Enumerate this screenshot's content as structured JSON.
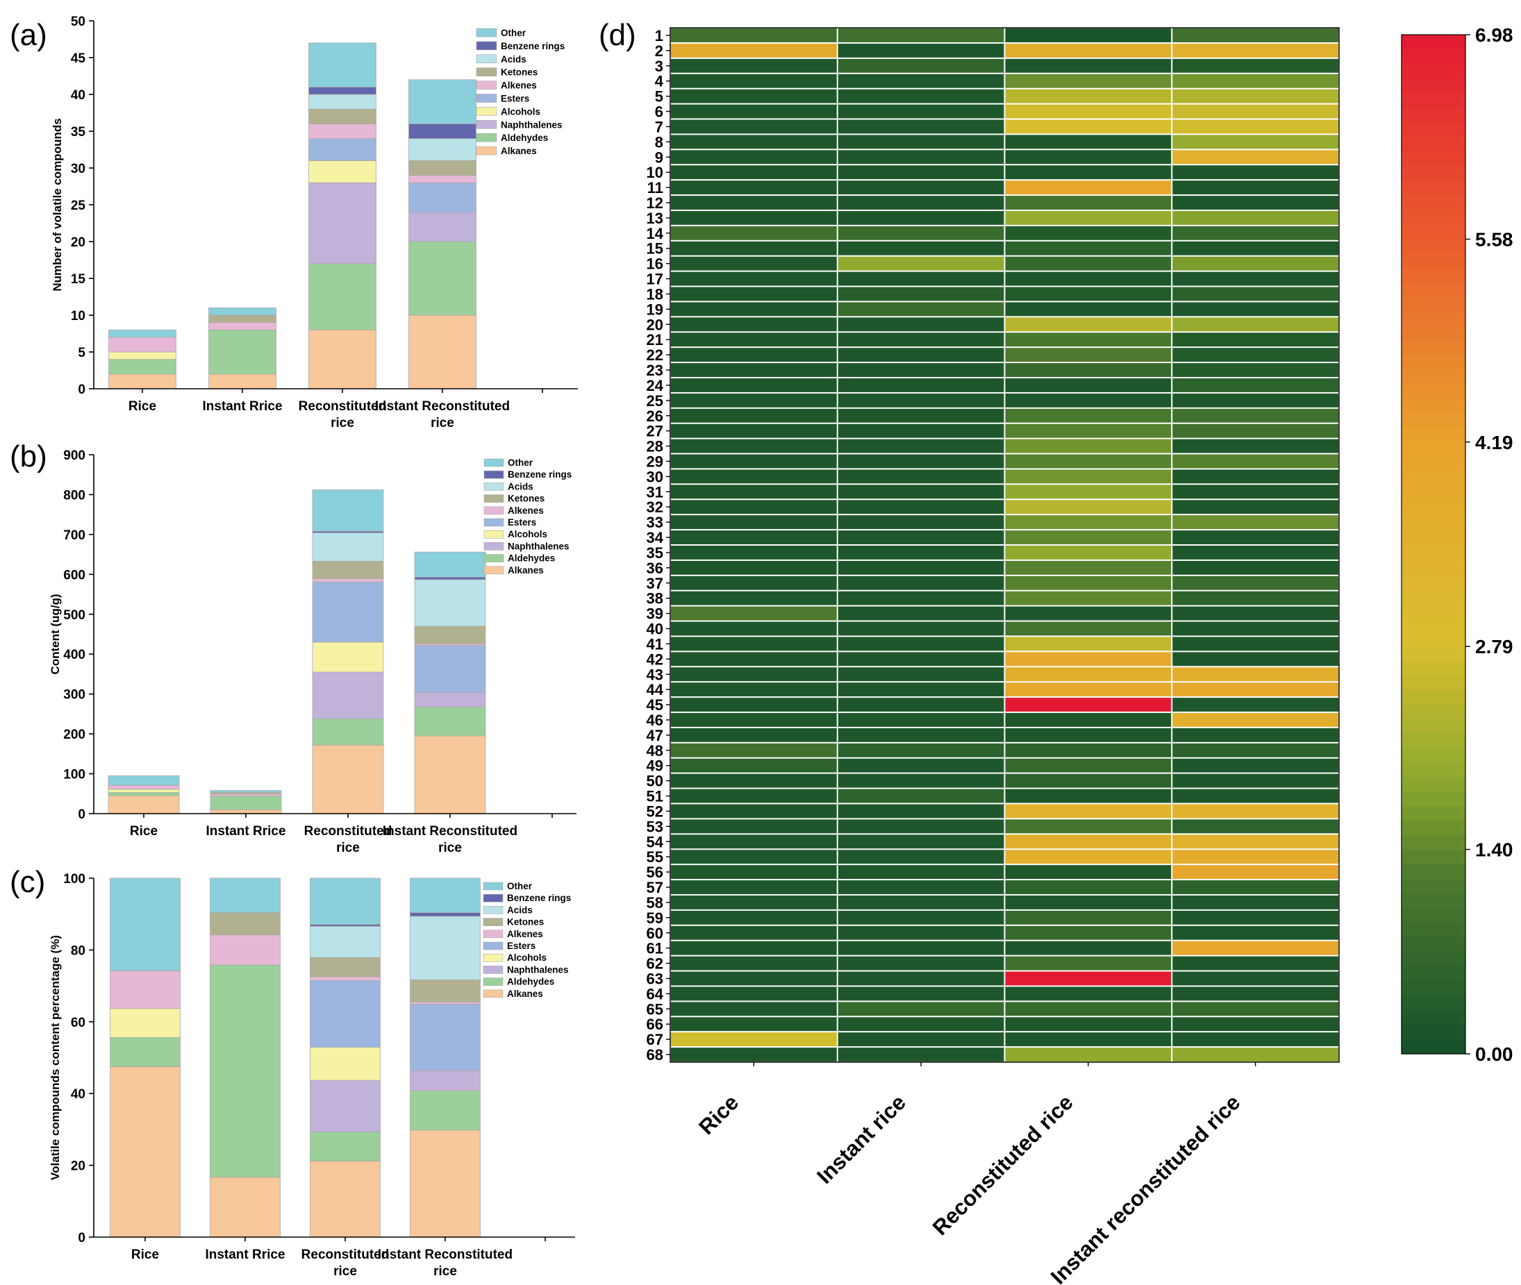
{
  "chart_data": [
    {
      "panel": "(a)",
      "type": "bar",
      "stacked": true,
      "ylabel": "Number of volatile compounds",
      "ylim": [
        0,
        50
      ],
      "yticks": [
        0,
        5,
        10,
        15,
        20,
        25,
        30,
        35,
        40,
        45,
        50
      ],
      "categories": [
        "Rice",
        "Instant Rrice",
        "Reconstituted rice",
        "Instant Reconstituted rice"
      ],
      "legend_position": "top-right",
      "series": [
        {
          "name": "Alkanes",
          "color": "#f8c79a",
          "values": [
            2,
            2,
            8,
            10
          ]
        },
        {
          "name": "Aldehydes",
          "color": "#9bd09a",
          "values": [
            2,
            6,
            9,
            10
          ]
        },
        {
          "name": "Naphthalenes",
          "color": "#c1b2d9",
          "values": [
            0,
            0,
            11,
            4
          ]
        },
        {
          "name": "Alcohols",
          "color": "#f7f3a4",
          "values": [
            1,
            0,
            3,
            0
          ]
        },
        {
          "name": "Esters",
          "color": "#9db6df",
          "values": [
            0,
            0,
            3,
            4
          ]
        },
        {
          "name": "Alkenes",
          "color": "#e7b8d5",
          "values": [
            2,
            1,
            2,
            1
          ]
        },
        {
          "name": "Ketones",
          "color": "#b1b191",
          "values": [
            0,
            1,
            2,
            2
          ]
        },
        {
          "name": "Acids",
          "color": "#b9e3e8",
          "values": [
            0,
            0,
            2,
            3
          ]
        },
        {
          "name": "Benzene rings",
          "color": "#6266ad",
          "values": [
            0,
            0,
            1,
            2
          ]
        },
        {
          "name": "Other",
          "color": "#8acfdc",
          "values": [
            1,
            1,
            6,
            6
          ]
        }
      ]
    },
    {
      "panel": "(b)",
      "type": "bar",
      "stacked": true,
      "ylabel": "Content (ug/g)",
      "ylim": [
        0,
        900
      ],
      "yticks": [
        0,
        100,
        200,
        300,
        400,
        500,
        600,
        700,
        800,
        900
      ],
      "categories": [
        "Rice",
        "Instant Rrice",
        "Reconstituted rice",
        "Instant Reconstituted rice"
      ],
      "legend_position": "top-right",
      "series": [
        {
          "name": "Alkanes",
          "color": "#f8c79a",
          "values": [
            45,
            10,
            172,
            195
          ]
        },
        {
          "name": "Aldehydes",
          "color": "#9bd09a",
          "values": [
            8,
            34,
            66,
            72
          ]
        },
        {
          "name": "Naphthalenes",
          "color": "#c1b2d9",
          "values": [
            0,
            0,
            117,
            37
          ]
        },
        {
          "name": "Alcohols",
          "color": "#f7f3a4",
          "values": [
            8,
            0,
            75,
            0
          ]
        },
        {
          "name": "Esters",
          "color": "#9db6df",
          "values": [
            0,
            0,
            151,
            118
          ]
        },
        {
          "name": "Alkenes",
          "color": "#e7b8d5",
          "values": [
            10,
            5,
            8,
            4
          ]
        },
        {
          "name": "Ketones",
          "color": "#b1b191",
          "values": [
            0,
            4,
            44,
            44
          ]
        },
        {
          "name": "Acids",
          "color": "#b9e3e8",
          "values": [
            0,
            0,
            71,
            117
          ]
        },
        {
          "name": "Benzene rings",
          "color": "#6266ad",
          "values": [
            0,
            0,
            4,
            6
          ]
        },
        {
          "name": "Other",
          "color": "#8acfdc",
          "values": [
            24,
            5,
            104,
            63
          ]
        }
      ]
    },
    {
      "panel": "(c)",
      "type": "bar",
      "stacked": true,
      "ylabel": "Volatile compounds content percentage (%)",
      "ylim": [
        0,
        100
      ],
      "yticks": [
        0,
        20,
        40,
        60,
        80,
        100
      ],
      "categories": [
        "Rice",
        "Instant Rrice",
        "Reconstituted rice",
        "Instant Reconstituted rice"
      ],
      "legend_position": "top-right",
      "series": [
        {
          "name": "Alkanes",
          "color": "#f8c79a",
          "values": [
            47.5,
            16.7,
            21.2,
            29.8
          ]
        },
        {
          "name": "Aldehydes",
          "color": "#9bd09a",
          "values": [
            8.1,
            59.1,
            8.1,
            11.0
          ]
        },
        {
          "name": "Naphthalenes",
          "color": "#c1b2d9",
          "values": [
            0,
            0,
            14.4,
            5.6
          ]
        },
        {
          "name": "Alcohols",
          "color": "#f7f3a4",
          "values": [
            8.1,
            0,
            9.2,
            0
          ]
        },
        {
          "name": "Esters",
          "color": "#9db6df",
          "values": [
            0,
            0,
            18.6,
            18.5
          ]
        },
        {
          "name": "Alkenes",
          "color": "#e7b8d5",
          "values": [
            10.5,
            8.4,
            1.0,
            0.6
          ]
        },
        {
          "name": "Ketones",
          "color": "#b1b191",
          "values": [
            0,
            6.2,
            5.4,
            6.2
          ]
        },
        {
          "name": "Acids",
          "color": "#b9e3e8",
          "values": [
            0,
            0,
            8.7,
            17.7
          ]
        },
        {
          "name": "Benzene rings",
          "color": "#6266ad",
          "values": [
            0,
            0,
            0.5,
            1.0
          ]
        },
        {
          "name": "Other",
          "color": "#8acfdc",
          "values": [
            25.8,
            9.6,
            12.9,
            9.6
          ]
        }
      ]
    },
    {
      "panel": "(d)",
      "type": "heatmap",
      "columns": [
        "Rice",
        "Instant rice",
        "Reconstituted rice",
        "Instant reconstituted rice"
      ],
      "rows": [
        "1",
        "2",
        "3",
        "4",
        "5",
        "6",
        "7",
        "8",
        "9",
        "10",
        "11",
        "12",
        "13",
        "14",
        "15",
        "16",
        "17",
        "18",
        "19",
        "20",
        "21",
        "22",
        "23",
        "24",
        "25",
        "26",
        "27",
        "28",
        "29",
        "30",
        "31",
        "32",
        "33",
        "34",
        "35",
        "36",
        "37",
        "38",
        "39",
        "40",
        "41",
        "42",
        "43",
        "44",
        "45",
        "46",
        "47",
        "48",
        "49",
        "50",
        "51",
        "52",
        "53",
        "54",
        "55",
        "56",
        "57",
        "58",
        "59",
        "60",
        "61",
        "62",
        "63",
        "64",
        "65",
        "66",
        "67",
        "68"
      ],
      "value_range": [
        0,
        6.98
      ],
      "colorbar_ticks": [
        "6.98",
        "5.58",
        "4.19",
        "2.79",
        "1.40",
        "0.00"
      ],
      "colorbar_tick_values": [
        6.98,
        5.58,
        4.19,
        2.79,
        1.4,
        0.0
      ],
      "colorscale": [
        {
          "value": 0.0,
          "color": "#15502a"
        },
        {
          "value": 1.2,
          "color": "#4d7a2e"
        },
        {
          "value": 1.9,
          "color": "#8faa2e"
        },
        {
          "value": 2.8,
          "color": "#d9be2e"
        },
        {
          "value": 4.2,
          "color": "#e9a22d"
        },
        {
          "value": 5.6,
          "color": "#ea5b2d"
        },
        {
          "value": 6.98,
          "color": "#e41a32"
        }
      ],
      "values": [
        [
          0.9,
          0.9,
          0.1,
          0.9
        ],
        [
          3.8,
          0.2,
          3.6,
          3.5
        ],
        [
          0.2,
          0.6,
          0.2,
          0.3
        ],
        [
          0.2,
          0.2,
          1.5,
          1.6
        ],
        [
          0.2,
          0.2,
          2.4,
          2.3
        ],
        [
          0.2,
          0.2,
          2.7,
          2.6
        ],
        [
          0.2,
          0.2,
          2.8,
          2.7
        ],
        [
          0.2,
          0.2,
          0.2,
          2.0
        ],
        [
          0.2,
          0.2,
          0.2,
          3.5
        ],
        [
          0.2,
          0.2,
          0.2,
          0.2
        ],
        [
          0.2,
          0.2,
          4.0,
          0.2
        ],
        [
          0.2,
          0.2,
          1.0,
          0.2
        ],
        [
          0.2,
          0.2,
          2.0,
          1.8
        ],
        [
          0.9,
          0.8,
          0.3,
          0.7
        ],
        [
          0.2,
          0.2,
          0.5,
          0.2
        ],
        [
          0.2,
          1.9,
          0.7,
          1.7
        ],
        [
          0.2,
          0.2,
          0.2,
          0.2
        ],
        [
          0.2,
          0.4,
          0.3,
          0.5
        ],
        [
          0.2,
          0.8,
          0.2,
          0.2
        ],
        [
          0.2,
          0.2,
          2.4,
          2.0
        ],
        [
          0.2,
          0.2,
          1.1,
          0.3
        ],
        [
          0.2,
          0.2,
          1.2,
          0.3
        ],
        [
          0.2,
          0.2,
          0.7,
          0.3
        ],
        [
          0.2,
          0.2,
          0.2,
          0.5
        ],
        [
          0.2,
          0.2,
          0.2,
          0.2
        ],
        [
          0.2,
          0.2,
          1.1,
          0.9
        ],
        [
          0.2,
          0.2,
          1.3,
          0.9
        ],
        [
          0.2,
          0.2,
          1.6,
          0.2
        ],
        [
          0.2,
          0.2,
          1.3,
          1.3
        ],
        [
          0.2,
          0.2,
          1.6,
          0.2
        ],
        [
          0.2,
          0.2,
          1.9,
          0.2
        ],
        [
          0.2,
          0.2,
          2.4,
          0.2
        ],
        [
          0.2,
          0.2,
          1.6,
          1.5
        ],
        [
          0.2,
          0.2,
          1.4,
          0.2
        ],
        [
          0.2,
          0.2,
          1.9,
          0.2
        ],
        [
          0.2,
          0.2,
          1.3,
          0.2
        ],
        [
          0.2,
          0.2,
          1.3,
          0.8
        ],
        [
          0.2,
          0.2,
          1.4,
          0.5
        ],
        [
          1.2,
          0.2,
          0.2,
          0.2
        ],
        [
          0.2,
          0.2,
          1.0,
          0.2
        ],
        [
          0.2,
          0.2,
          2.5,
          0.2
        ],
        [
          0.2,
          0.2,
          3.9,
          0.2
        ],
        [
          0.2,
          0.2,
          3.6,
          3.6
        ],
        [
          0.2,
          0.2,
          3.9,
          3.9
        ],
        [
          0.2,
          0.2,
          6.98,
          0.2
        ],
        [
          0.2,
          0.2,
          0.2,
          3.6
        ],
        [
          0.2,
          0.2,
          0.2,
          0.2
        ],
        [
          0.9,
          0.5,
          0.5,
          0.5
        ],
        [
          0.5,
          0.2,
          0.7,
          0.2
        ],
        [
          0.2,
          0.2,
          0.5,
          0.2
        ],
        [
          0.2,
          0.5,
          0.2,
          0.2
        ],
        [
          0.2,
          0.2,
          3.4,
          3.4
        ],
        [
          0.2,
          0.2,
          1.0,
          0.5
        ],
        [
          0.2,
          0.2,
          3.6,
          3.4
        ],
        [
          0.2,
          0.2,
          3.6,
          3.7
        ],
        [
          0.2,
          0.2,
          0.2,
          4.0
        ],
        [
          0.2,
          0.2,
          0.5,
          0.5
        ],
        [
          0.2,
          0.2,
          0.2,
          0.2
        ],
        [
          0.2,
          0.2,
          0.7,
          0.2
        ],
        [
          0.2,
          0.2,
          0.7,
          0.2
        ],
        [
          0.2,
          0.2,
          0.2,
          4.0
        ],
        [
          0.2,
          0.2,
          0.9,
          0.2
        ],
        [
          0.2,
          0.2,
          6.98,
          0.2
        ],
        [
          0.2,
          0.2,
          0.2,
          0.2
        ],
        [
          0.2,
          0.7,
          0.7,
          0.7
        ],
        [
          0.2,
          0.2,
          0.2,
          0.2
        ],
        [
          2.7,
          0.2,
          0.2,
          0.2
        ],
        [
          0.2,
          0.2,
          1.9,
          1.9
        ]
      ]
    }
  ]
}
